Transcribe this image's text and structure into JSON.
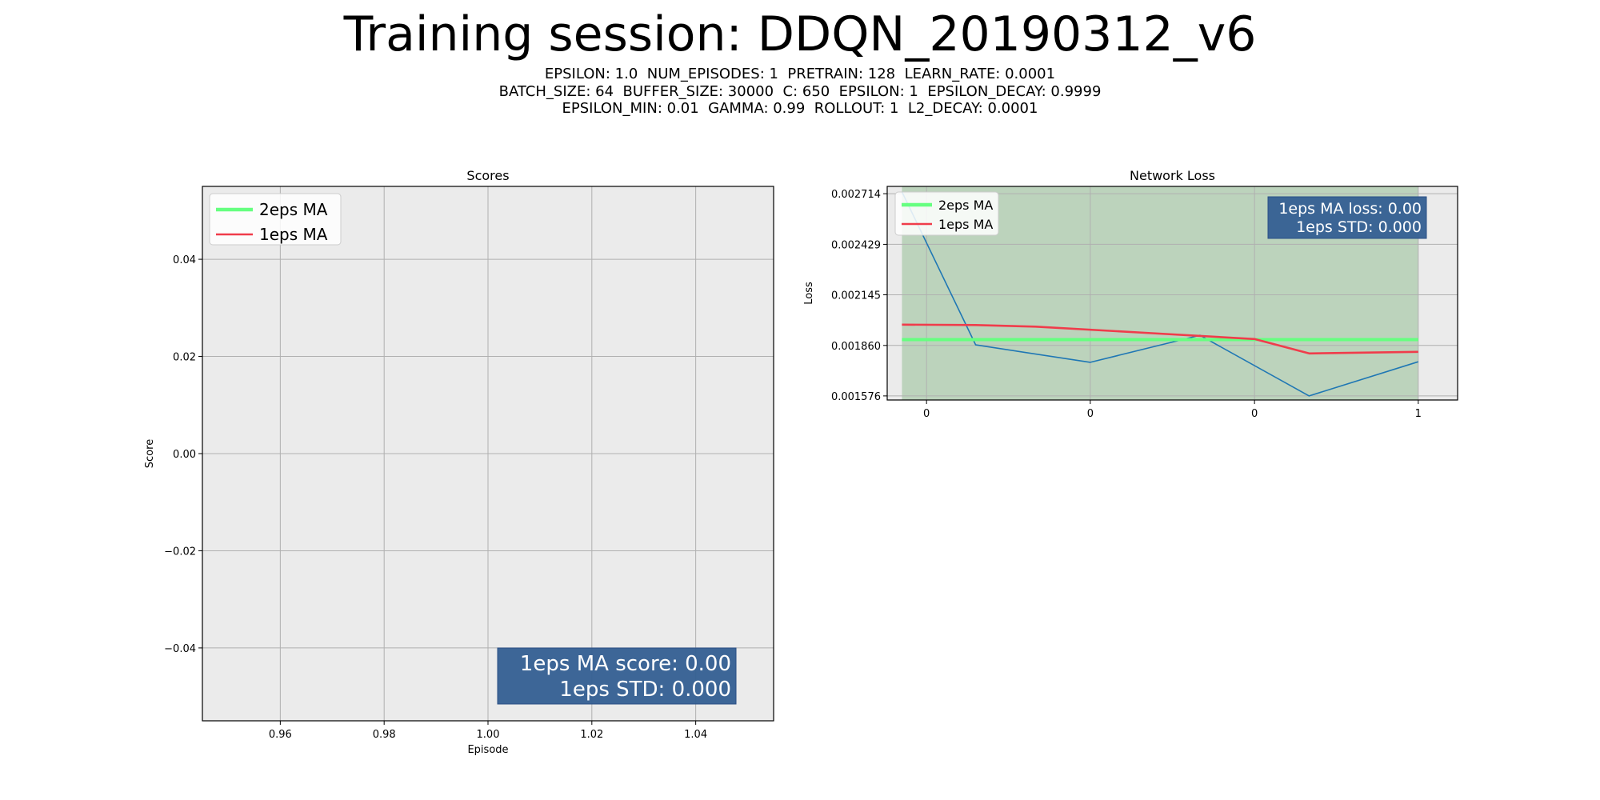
{
  "title": "Training session: DDQN_20190312_v6",
  "subtitle_lines": [
    "EPSILON: 1.0  NUM_EPISODES: 1  PRETRAIN: 128  LEARN_RATE: 0.0001",
    "BATCH_SIZE: 64  BUFFER_SIZE: 30000  C: 650  EPSILON: 1  EPSILON_DECAY: 0.9999",
    "EPSILON_MIN: 0.01  GAMMA: 0.99  ROLLOUT: 1  L2_DECAY: 0.0001"
  ],
  "colors": {
    "axes_bg": "#ebebeb",
    "grid": "#b0b0b0",
    "ma_long": "#66ff80",
    "ma_short": "#f03c4b",
    "raw_loss": "#1f77b4",
    "shade": "#2e8b2e",
    "info_box": "#345f92"
  },
  "chart_data": [
    {
      "type": "line",
      "title": "Scores",
      "xlabel": "Episode",
      "ylabel": "Score",
      "xlim": [
        0.945,
        1.055
      ],
      "ylim": [
        -0.055,
        0.055
      ],
      "xticks": [
        0.96,
        0.98,
        1.0,
        1.02,
        1.04
      ],
      "xtick_labels": [
        "0.96",
        "0.98",
        "1.00",
        "1.02",
        "1.04"
      ],
      "yticks": [
        -0.04,
        -0.02,
        0.0,
        0.02,
        0.04
      ],
      "ytick_labels": [
        "−0.04",
        "−0.02",
        "0.00",
        "0.02",
        "0.04"
      ],
      "grid": true,
      "legend": {
        "position": "top-left",
        "entries": [
          {
            "label": "2eps MA",
            "color": "#66ff80"
          },
          {
            "label": "1eps MA",
            "color": "#f03c4b"
          }
        ]
      },
      "series": [],
      "info_box": {
        "position": "bottom-right",
        "lines": [
          "1eps MA score: 0.00",
          "1eps STD: 0.000"
        ]
      }
    },
    {
      "type": "line",
      "title": "Network Loss",
      "xlabel": "",
      "ylabel": "Loss",
      "xlim": [
        -0.08,
        1.08
      ],
      "ylim": [
        0.001553,
        0.002755
      ],
      "xticks": [
        0.0,
        0.333,
        0.667,
        1.0
      ],
      "xtick_labels": [
        "0",
        "0",
        "0",
        "1"
      ],
      "yticks": [
        0.001576,
        0.00186,
        0.002145,
        0.002429,
        0.002714
      ],
      "ytick_labels": [
        "0.001576",
        "0.001860",
        "0.002145",
        "0.002429",
        "0.002714"
      ],
      "grid": true,
      "shaded_region": [
        -0.05,
        1.0
      ],
      "legend": {
        "position": "top-left",
        "entries": [
          {
            "label": "2eps MA",
            "color": "#66ff80"
          },
          {
            "label": "1eps MA",
            "color": "#f03c4b"
          }
        ]
      },
      "series": [
        {
          "x": [
            -0.05,
            0.1,
            0.333,
            0.556,
            0.778,
            1.0
          ],
          "values": [
            0.002725,
            0.001863,
            0.001765,
            0.001917,
            0.001576,
            0.001768
          ]
        },
        {
          "name": "2eps MA",
          "x": [
            -0.05,
            1.0
          ],
          "values": [
            0.001893,
            0.001893
          ]
        },
        {
          "name": "1eps MA",
          "x": [
            -0.05,
            0.1,
            0.222,
            0.444,
            0.667,
            0.778,
            1.0
          ],
          "values": [
            0.001977,
            0.001975,
            0.001966,
            0.001931,
            0.001896,
            0.001815,
            0.001824
          ]
        }
      ],
      "info_box": {
        "position": "top-right",
        "lines": [
          "1eps MA loss: 0.00",
          "1eps STD: 0.000"
        ]
      }
    }
  ]
}
